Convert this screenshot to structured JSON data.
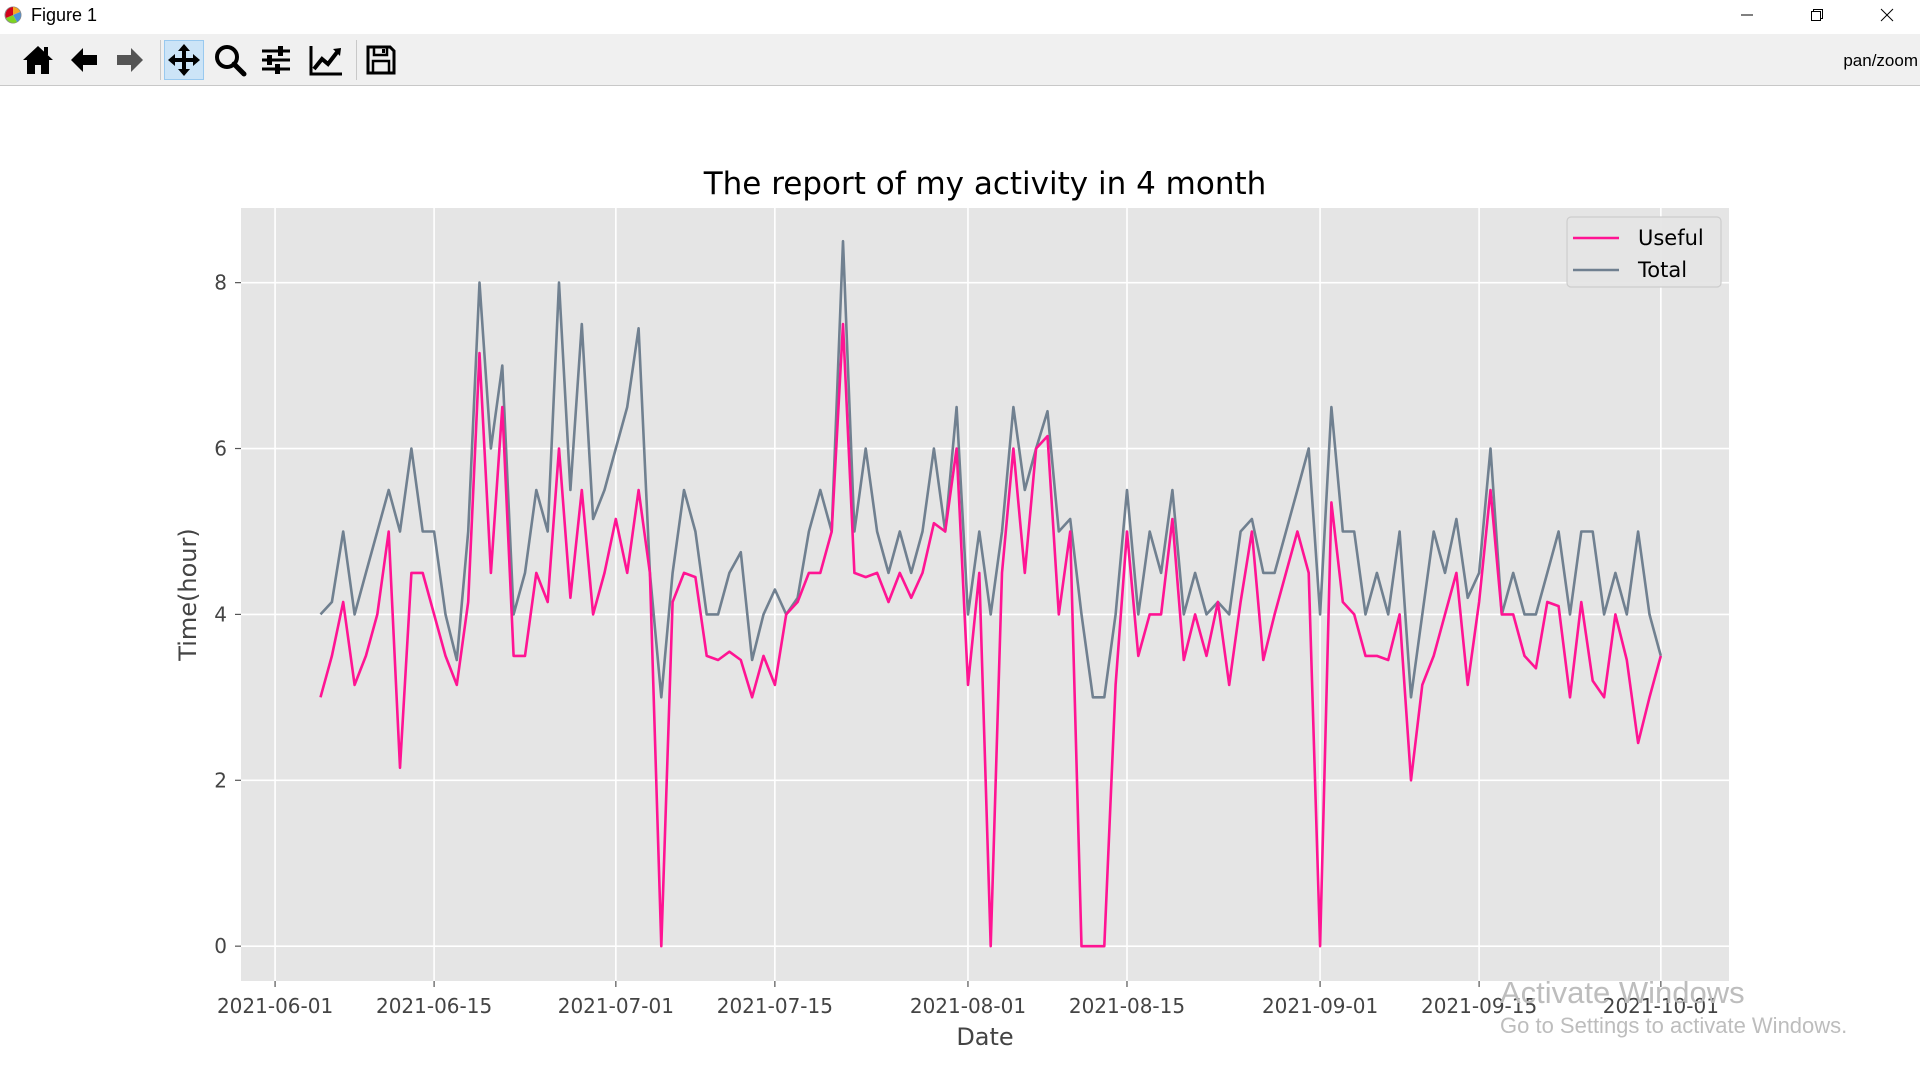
{
  "window": {
    "title": "Figure 1"
  },
  "toolbar": {
    "tools": [
      "home-icon",
      "back-icon",
      "forward-icon",
      "pan-icon",
      "zoom-icon",
      "configure-subplots-icon",
      "edit-axis-icon",
      "save-icon"
    ],
    "mode": "pan/zoom"
  },
  "watermark": {
    "line1": "Activate Windows",
    "line2": "Go to Settings to activate Windows."
  },
  "colors": {
    "useful": "#ff1493",
    "total": "#708090",
    "axes_bg": "#e5e5e5",
    "grid": "#ffffff"
  },
  "chart_data": {
    "type": "line",
    "title": "The report of my activity in 4 month",
    "xlabel": "Date",
    "ylabel": "Time(hour)",
    "x_start": "2021-06-05",
    "x_end": "2021-10-01",
    "xlim": [
      "2021-05-29",
      "2021-10-07"
    ],
    "ylim": [
      -0.42,
      8.9
    ],
    "x_ticks": [
      "2021-06-01",
      "2021-06-15",
      "2021-07-01",
      "2021-07-15",
      "2021-08-01",
      "2021-08-15",
      "2021-09-01",
      "2021-09-15",
      "2021-10-01"
    ],
    "y_ticks": [
      0,
      2,
      4,
      6,
      8
    ],
    "grid": true,
    "legend": "top-right",
    "series": [
      {
        "name": "Useful",
        "values": [
          3.0,
          3.5,
          4.15,
          3.15,
          3.5,
          4.0,
          5.0,
          2.15,
          4.5,
          4.5,
          4.0,
          3.5,
          3.15,
          4.15,
          7.15,
          4.5,
          6.5,
          3.5,
          3.5,
          4.5,
          4.15,
          6.0,
          4.2,
          5.5,
          4.0,
          4.5,
          5.15,
          4.5,
          5.5,
          4.5,
          0.0,
          4.15,
          4.5,
          4.45,
          3.5,
          3.45,
          3.55,
          3.45,
          3.0,
          3.5,
          3.15,
          4.0,
          4.15,
          4.5,
          4.5,
          5.0,
          7.5,
          4.5,
          4.45,
          4.5,
          4.15,
          4.5,
          4.2,
          4.5,
          5.1,
          5.0,
          6.0,
          3.15,
          4.5,
          0.0,
          4.5,
          6.0,
          4.5,
          6.0,
          6.15,
          4.0,
          5.0,
          0.0,
          0.0,
          0.0,
          3.15,
          5.0,
          3.5,
          4.0,
          4.0,
          5.15,
          3.45,
          4.0,
          3.5,
          4.15,
          3.15,
          4.15,
          5.0,
          3.45,
          4.0,
          4.5,
          5.0,
          4.5,
          0.0,
          5.35,
          4.15,
          4.0,
          3.5,
          3.5,
          3.45,
          4.0,
          2.0,
          3.15,
          3.5,
          4.0,
          4.5,
          3.15,
          4.15,
          5.5,
          4.0,
          4.0,
          3.5,
          3.35,
          4.15,
          4.1,
          3.0,
          4.15,
          3.2,
          3.0,
          4.0,
          3.45,
          2.45,
          3.0,
          3.5
        ]
      },
      {
        "name": "Total",
        "values": [
          4.0,
          4.15,
          5.0,
          4.0,
          4.5,
          5.0,
          5.5,
          5.0,
          6.0,
          5.0,
          5.0,
          4.0,
          3.45,
          5.0,
          8.0,
          6.0,
          7.0,
          4.0,
          4.5,
          5.5,
          5.0,
          8.0,
          5.5,
          7.5,
          5.15,
          5.5,
          6.0,
          6.5,
          7.45,
          4.5,
          3.0,
          4.5,
          5.5,
          5.0,
          4.0,
          4.0,
          4.5,
          4.75,
          3.45,
          4.0,
          4.3,
          4.0,
          4.2,
          5.0,
          5.5,
          5.0,
          8.5,
          5.0,
          6.0,
          5.0,
          4.5,
          5.0,
          4.5,
          5.0,
          6.0,
          5.0,
          6.5,
          4.0,
          5.0,
          4.0,
          5.0,
          6.5,
          5.5,
          6.0,
          6.45,
          5.0,
          5.15,
          4.0,
          3.0,
          3.0,
          4.0,
          5.5,
          4.0,
          5.0,
          4.5,
          5.5,
          4.0,
          4.5,
          4.0,
          4.15,
          4.0,
          5.0,
          5.15,
          4.5,
          4.5,
          5.0,
          5.5,
          6.0,
          4.0,
          6.5,
          5.0,
          5.0,
          4.0,
          4.5,
          4.0,
          5.0,
          3.0,
          4.0,
          5.0,
          4.5,
          5.15,
          4.2,
          4.5,
          6.0,
          4.0,
          4.5,
          4.0,
          4.0,
          4.5,
          5.0,
          4.0,
          5.0,
          5.0,
          4.0,
          4.5,
          4.0,
          5.0,
          4.0,
          3.5
        ]
      }
    ]
  }
}
